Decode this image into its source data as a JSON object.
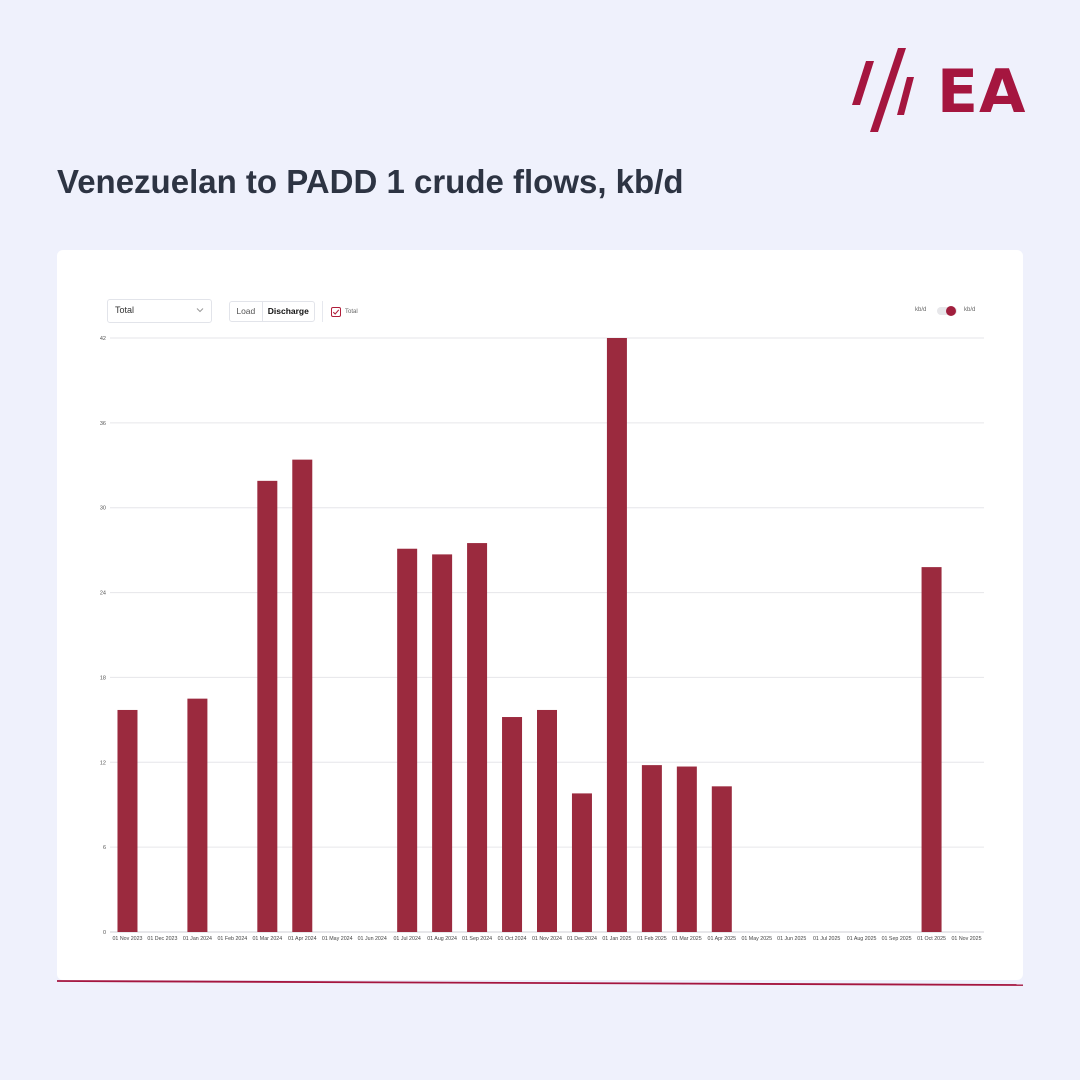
{
  "brand": {
    "logo_text": "EA",
    "color": "#a5163f"
  },
  "page_title": "Venezuelan to PADD 1 crude flows, kb/d",
  "controls": {
    "select_value": "Total",
    "segment_load": "Load",
    "segment_discharge": "Discharge",
    "segment_selected": "Discharge",
    "checkbox_label": "Total",
    "checkbox_checked": true,
    "unit_left": "kb/d",
    "unit_right": "kb/d"
  },
  "chart_data": {
    "type": "bar",
    "categories": [
      "01 Nov 2023",
      "01 Dec 2023",
      "01 Jan 2024",
      "01 Feb 2024",
      "01 Mar 2024",
      "01 Apr 2024",
      "01 May 2024",
      "01 Jun 2024",
      "01 Jul 2024",
      "01 Aug 2024",
      "01 Sep 2024",
      "01 Oct 2024",
      "01 Nov 2024",
      "01 Dec 2024",
      "01 Jan 2025",
      "01 Feb 2025",
      "01 Mar 2025",
      "01 Apr 2025",
      "01 May 2025",
      "01 Jun 2025",
      "01 Jul 2025",
      "01 Aug 2025",
      "01 Sep 2025",
      "01 Oct 2025",
      "01 Nov 2025"
    ],
    "values": [
      15.7,
      0,
      16.5,
      0,
      31.9,
      33.4,
      0,
      0,
      27.1,
      26.7,
      27.5,
      15.2,
      15.7,
      9.8,
      42.0,
      11.8,
      11.7,
      10.3,
      0,
      0,
      0,
      0,
      0,
      25.8,
      0
    ],
    "yticks": [
      0,
      6,
      12,
      18,
      24,
      30,
      36,
      42
    ],
    "ylim": [
      0,
      42
    ],
    "grid": true,
    "bar_color": "#9b2a3e",
    "title": "Venezuelan to PADD 1 crude flows, kb/d",
    "xlabel": "",
    "ylabel": ""
  }
}
